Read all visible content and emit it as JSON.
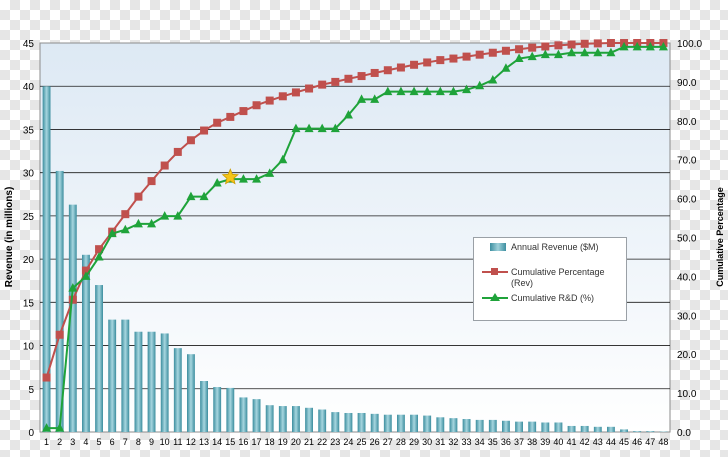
{
  "chart_data": {
    "type": "bar",
    "x": [
      1,
      2,
      3,
      4,
      5,
      6,
      7,
      8,
      9,
      10,
      11,
      12,
      13,
      14,
      15,
      16,
      17,
      18,
      19,
      20,
      21,
      22,
      23,
      24,
      25,
      26,
      27,
      28,
      29,
      30,
      31,
      32,
      33,
      34,
      35,
      36,
      37,
      38,
      39,
      40,
      41,
      42,
      43,
      44,
      45,
      46,
      47,
      48
    ],
    "x_tick_labels": [
      "1",
      "2",
      "3",
      "4",
      "5",
      "6",
      "7",
      "8",
      "9",
      "10",
      "11",
      "12",
      "13",
      "14",
      "15",
      "16",
      "17",
      "18",
      "19",
      "20",
      "21",
      "22",
      "23",
      "24",
      "25",
      "26",
      "27",
      "28",
      "29",
      "30",
      "31",
      "32",
      "33",
      "34",
      "35",
      "36",
      "37",
      "38",
      "39",
      "40",
      "41",
      "42",
      "43",
      "44",
      "45",
      "46",
      "47",
      "48"
    ],
    "ylabel": "Revenue (in millions)",
    "y2label": "Cumulative Percentage",
    "ylim": [
      0,
      45
    ],
    "y2lim": [
      0,
      100
    ],
    "y_ticks": [
      "0",
      "5",
      "10",
      "15",
      "20",
      "25",
      "30",
      "35",
      "40",
      "45"
    ],
    "y2_ticks": [
      "0.0",
      "10.0",
      "20.0",
      "30.0",
      "40.0",
      "50.0",
      "60.0",
      "70.0",
      "80.0",
      "90.0",
      "100.0"
    ],
    "grid": true,
    "legend_position": "right",
    "series": [
      {
        "name": "Annual Revenue ($M)",
        "type": "bar",
        "axis": "left",
        "color": "#4a9aab",
        "values": [
          40,
          30.2,
          26.3,
          20.5,
          17,
          13,
          13,
          11.6,
          11.6,
          11.4,
          9.7,
          9,
          5.9,
          5.2,
          5.1,
          4,
          3.8,
          3.1,
          3,
          3,
          2.8,
          2.6,
          2.3,
          2.2,
          2.2,
          2.1,
          2,
          2,
          2,
          1.9,
          1.7,
          1.6,
          1.5,
          1.4,
          1.4,
          1.3,
          1.2,
          1.2,
          1.1,
          1.1,
          0.7,
          0.7,
          0.6,
          0.6,
          0.3,
          0.1,
          0.1,
          0.05
        ]
      },
      {
        "name": "Cumulative Percentage (Rev)",
        "type": "line",
        "axis": "right",
        "marker": "square",
        "color": "#c0504d",
        "values": [
          14,
          25,
          34,
          41.5,
          47,
          51.5,
          56,
          60.5,
          64.5,
          68.5,
          72,
          75,
          77.5,
          79.5,
          81,
          82.5,
          84,
          85.2,
          86.3,
          87.3,
          88.3,
          89.3,
          90,
          90.8,
          91.5,
          92.3,
          93,
          93.7,
          94.4,
          95,
          95.6,
          96,
          96.5,
          97,
          97.5,
          98,
          98.4,
          98.8,
          99.1,
          99.4,
          99.6,
          99.8,
          99.9,
          100,
          100,
          100,
          100,
          100
        ]
      },
      {
        "name": "Cumulative R&D (%)",
        "type": "line",
        "axis": "right",
        "marker": "triangle",
        "color": "#1fa33a",
        "values": [
          1,
          1,
          37,
          40,
          45,
          51,
          52,
          53.5,
          53.5,
          55.5,
          55.5,
          60.5,
          60.5,
          64,
          65,
          65,
          65,
          66.5,
          70,
          78,
          78,
          78,
          78,
          81.5,
          85.5,
          85.5,
          87.5,
          87.5,
          87.5,
          87.5,
          87.5,
          87.5,
          88,
          89,
          90.5,
          93.5,
          96,
          96.5,
          97,
          97,
          97.5,
          97.5,
          97.5,
          97.5,
          99,
          99,
          99,
          99
        ]
      }
    ],
    "annotations": [
      {
        "type": "star",
        "x": 15,
        "y2": 65.5,
        "color": "#f5c518"
      }
    ]
  }
}
